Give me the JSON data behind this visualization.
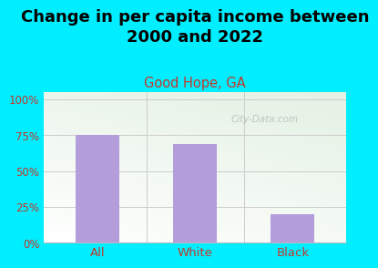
{
  "title": "Change in per capita income between\n2000 and 2022",
  "subtitle": "Good Hope, GA",
  "categories": [
    "All",
    "White",
    "Black"
  ],
  "values": [
    75,
    69,
    20
  ],
  "bar_color": "#b39ddb",
  "title_fontsize": 13,
  "subtitle_fontsize": 10.5,
  "subtitle_color": "#c0392b",
  "title_color": "#000000",
  "bg_color": "#00eeff",
  "yticks": [
    0,
    25,
    50,
    75,
    100
  ],
  "ylim": [
    0,
    105
  ],
  "tick_color": "#c0392b",
  "tick_fontsize": 8.5,
  "xlabel_fontsize": 9.5,
  "xlabel_color": "#333333",
  "watermark_text": "City-Data.com",
  "watermark_color": "#aaaaaa",
  "grid_color": "#cccccc",
  "bottom_line_color": "#bbbbbb"
}
